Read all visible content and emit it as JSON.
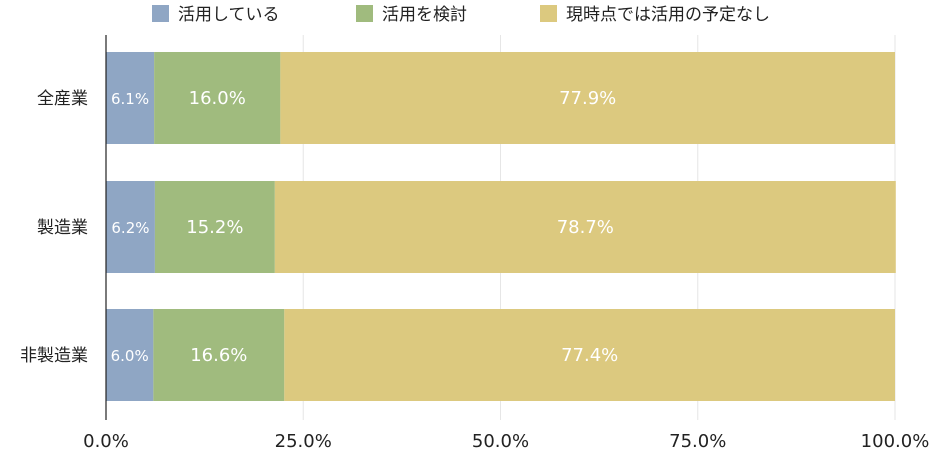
{
  "chart_data": {
    "type": "bar",
    "orientation": "horizontal",
    "stacked": true,
    "categories": [
      "全産業",
      "製造業",
      "非製造業"
    ],
    "series": [
      {
        "name": "活用している",
        "values": [
          6.1,
          6.2,
          6.0
        ],
        "labels": [
          "6.1%",
          "6.2%",
          "6.0%"
        ],
        "color": "#8fa6c4"
      },
      {
        "name": "活用を検討",
        "values": [
          16.0,
          15.2,
          16.6
        ],
        "labels": [
          "16.0%",
          "15.2%",
          "16.6%"
        ],
        "color": "#a0bb7e"
      },
      {
        "name": "現時点では活用の予定なし",
        "values": [
          77.9,
          78.7,
          77.4
        ],
        "labels": [
          "77.9%",
          "78.7%",
          "77.4%"
        ],
        "color": "#dcc97f"
      }
    ],
    "xlim": [
      0,
      100
    ],
    "x_ticks": [
      0,
      25,
      50,
      75,
      100
    ],
    "x_tick_labels": [
      "0.0%",
      "25.0%",
      "50.0%",
      "75.0%",
      "100.0%"
    ],
    "grid": true,
    "legend_position": "top"
  }
}
